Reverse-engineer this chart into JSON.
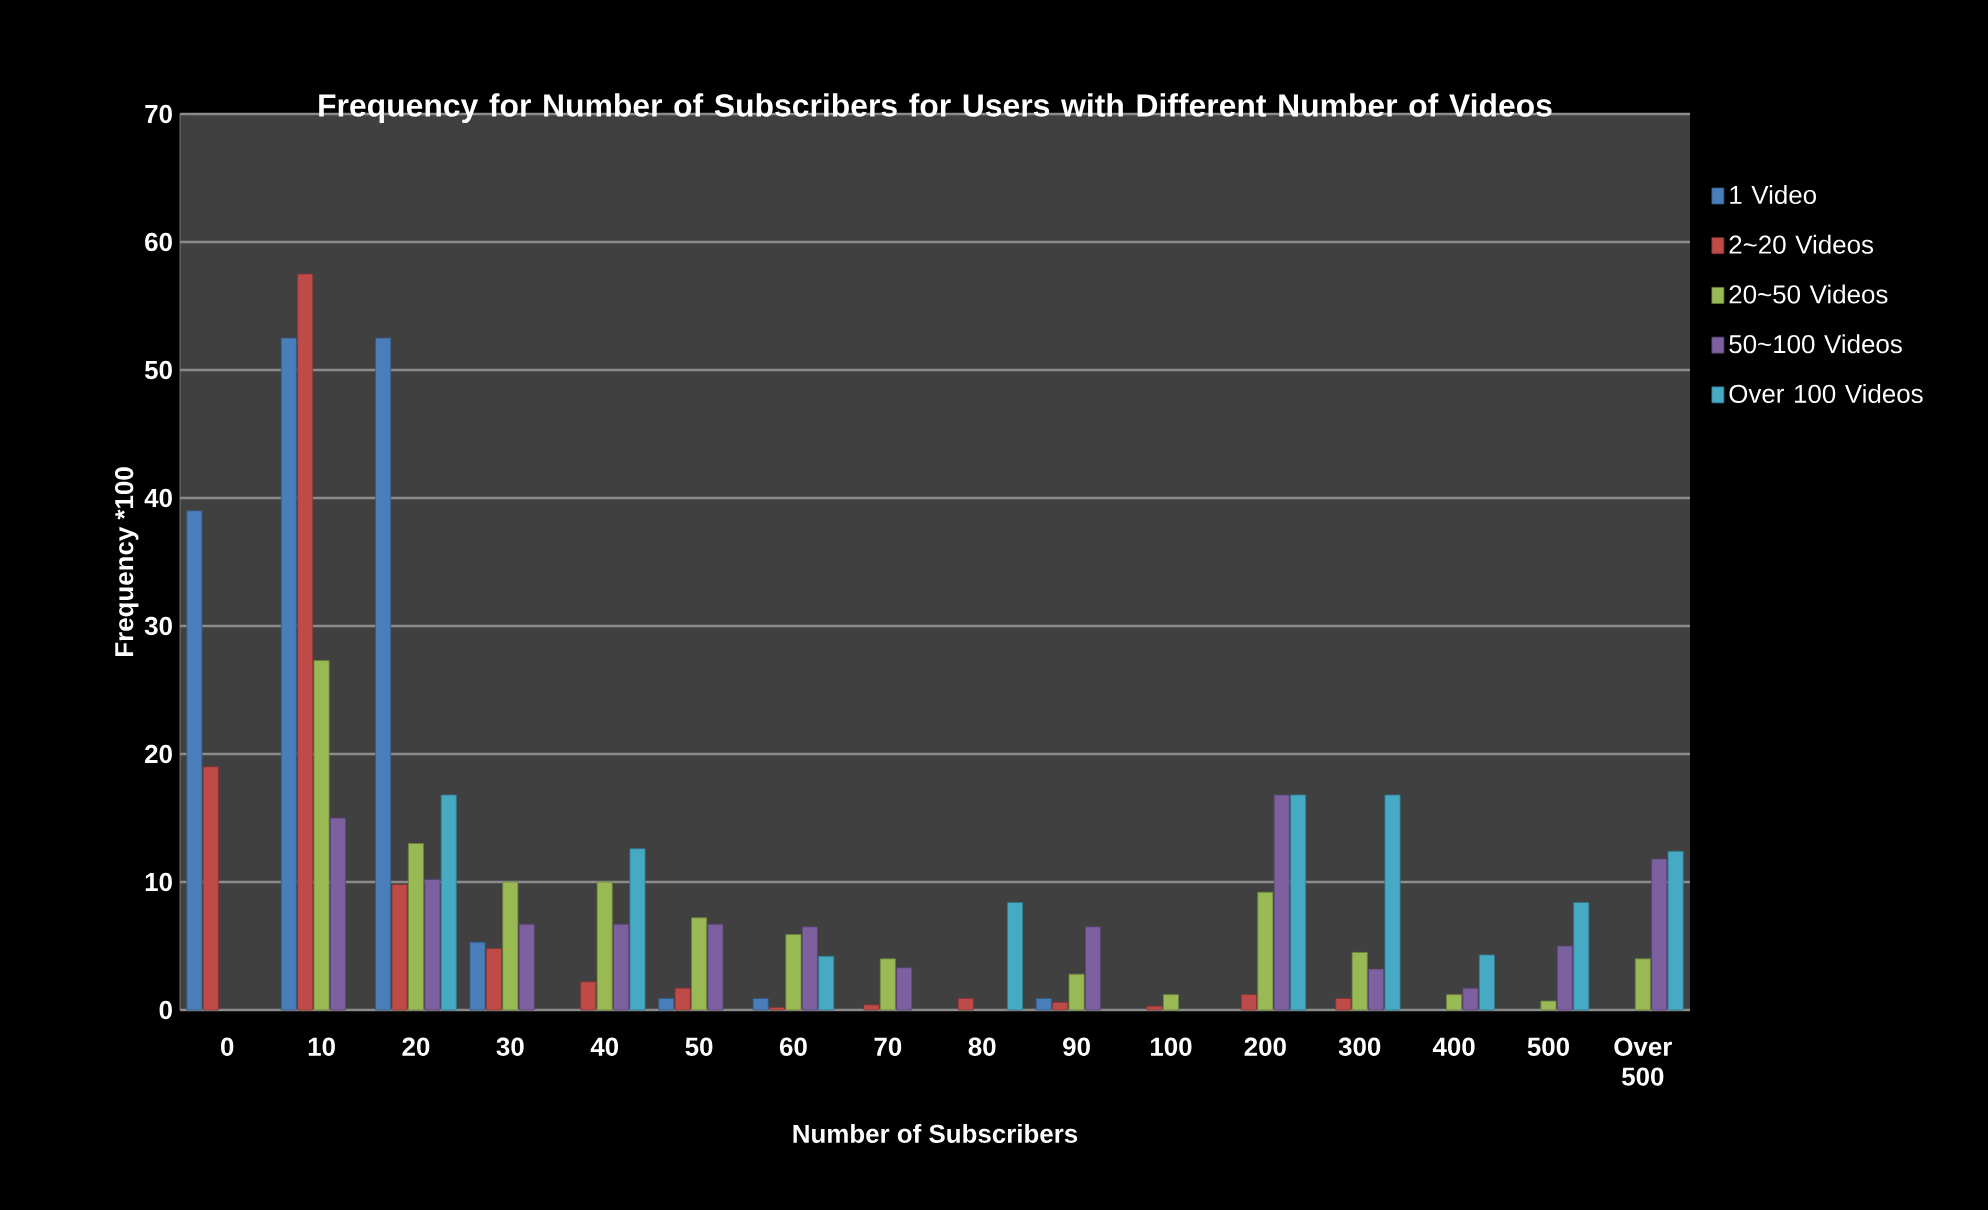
{
  "chart_data": {
    "type": "bar",
    "title": "Frequency for Number of Subscribers for Users with Different Number of Videos",
    "xlabel": "Number of Subscribers",
    "ylabel": "Frequency *100",
    "categories": [
      "0",
      "10",
      "20",
      "30",
      "40",
      "50",
      "60",
      "70",
      "80",
      "90",
      "100",
      "200",
      "300",
      "400",
      "500",
      "Over 500"
    ],
    "series": [
      {
        "name": "1 Video",
        "color": "#4a7ebb",
        "values": [
          39,
          52.5,
          52.5,
          5.3,
          null,
          0.9,
          0.9,
          null,
          null,
          0.9,
          null,
          null,
          null,
          null,
          null,
          null
        ]
      },
      {
        "name": "2~20 Videos",
        "color": "#be4b48",
        "values": [
          19,
          57.5,
          9.8,
          4.8,
          2.2,
          1.7,
          0.2,
          0.4,
          0.9,
          0.6,
          0.3,
          1.2,
          0.9,
          null,
          null,
          null
        ]
      },
      {
        "name": "20~50 Videos",
        "color": "#98b954",
        "values": [
          null,
          27.3,
          13,
          10,
          10,
          7.2,
          5.9,
          4,
          null,
          2.8,
          1.2,
          9.2,
          4.5,
          1.2,
          0.7,
          4
        ]
      },
      {
        "name": "50~100 Videos",
        "color": "#7d60a0",
        "values": [
          null,
          15,
          10.2,
          6.7,
          6.7,
          6.7,
          6.5,
          3.3,
          null,
          6.5,
          null,
          16.8,
          3.2,
          1.7,
          5,
          11.8
        ]
      },
      {
        "name": "Over 100 Videos",
        "color": "#46aac5",
        "values": [
          null,
          null,
          16.8,
          null,
          12.6,
          null,
          4.2,
          null,
          8.4,
          null,
          null,
          16.8,
          16.8,
          4.3,
          8.4,
          12.4
        ]
      }
    ],
    "ylim": [
      0,
      70
    ],
    "yticks": [
      0,
      10,
      20,
      30,
      40,
      50,
      60,
      70
    ],
    "grid": "y",
    "legend": "right"
  }
}
